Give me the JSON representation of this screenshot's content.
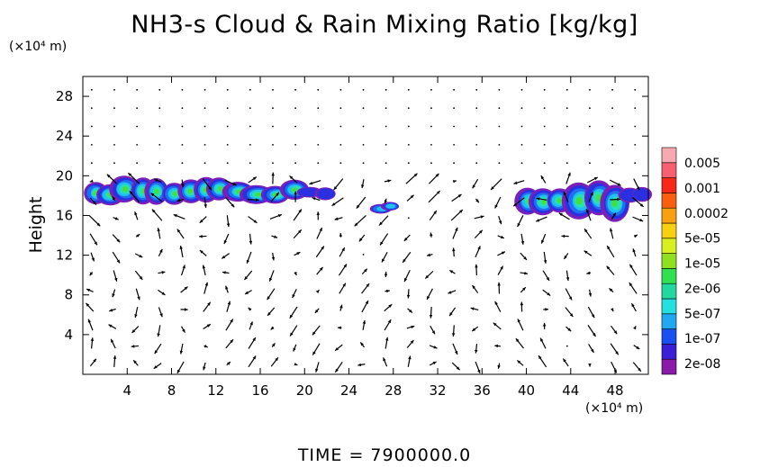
{
  "chart_data": {
    "type": "heatmap",
    "title": "NH3-s Cloud & Rain Mixing Ratio [kg/kg]",
    "ylabel": "Height",
    "xunit": "(×10⁴ m)",
    "yunit": "(×10⁴ m)",
    "footer": "TIME  =  7900000.0",
    "xlim": [
      0,
      51
    ],
    "ylim": [
      0,
      30
    ],
    "x_ticks": [
      "4",
      "8",
      "12",
      "16",
      "20",
      "24",
      "28",
      "32",
      "36",
      "40",
      "44",
      "48"
    ],
    "x_tick_values": [
      4,
      8,
      12,
      16,
      20,
      24,
      28,
      32,
      36,
      40,
      44,
      48
    ],
    "y_ticks": [
      "4",
      "8",
      "12",
      "16",
      "20",
      "24",
      "28"
    ],
    "y_tick_values": [
      4,
      8,
      12,
      16,
      20,
      24,
      28
    ],
    "colorbar": {
      "labels": [
        "0.005",
        "0.001",
        "0.0002",
        "5e-05",
        "1e-05",
        "2e-06",
        "5e-07",
        "1e-07",
        "2e-08"
      ],
      "colors": [
        "#8a1aa8",
        "#3b1fd8",
        "#1a50f0",
        "#22a8f0",
        "#25e0e0",
        "#20d8a0",
        "#30e050",
        "#8ee020",
        "#d8f020",
        "#f8d010",
        "#f8a010",
        "#f86010",
        "#f82818",
        "#f86070",
        "#f8a8b0"
      ]
    },
    "cloud_regions": [
      {
        "x": [
          0.5,
          13.0
        ],
        "y": [
          17.0,
          19.6
        ],
        "level": "max 2e-06"
      },
      {
        "x": [
          13.5,
          20.0
        ],
        "y": [
          17.2,
          19.4
        ],
        "level": "max 1e-06"
      },
      {
        "x": [
          20.0,
          22.5
        ],
        "y": [
          17.5,
          18.8
        ],
        "level": "max 1e-07"
      },
      {
        "x": [
          26.5,
          28.5
        ],
        "y": [
          16.3,
          17.3
        ],
        "level": "max 2e-06"
      },
      {
        "x": [
          39.5,
          43.5
        ],
        "y": [
          16.3,
          19.3
        ],
        "level": "max 1e-05"
      },
      {
        "x": [
          44.0,
          49.0
        ],
        "y": [
          15.5,
          19.3
        ],
        "level": "max 1e-05"
      },
      {
        "x": [
          49.0,
          51.0
        ],
        "y": [
          17.2,
          18.8
        ],
        "level": "max 5e-07"
      }
    ]
  }
}
